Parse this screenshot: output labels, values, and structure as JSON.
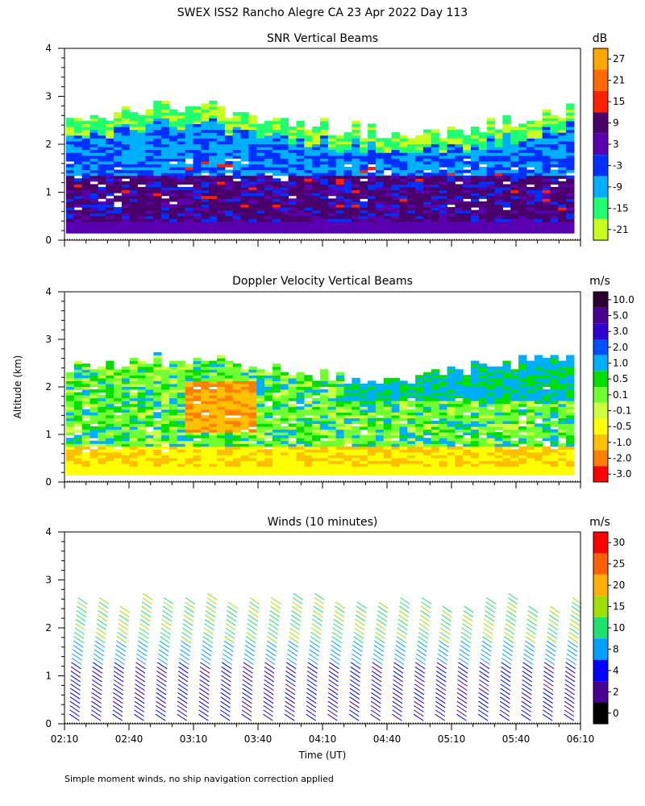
{
  "header": {
    "title": "SWEX ISS2 Rancho Alegre CA  23 Apr 2022 Day 113",
    "footnote": "Simple moment winds, no ship navigation correction applied",
    "y_axis_label": "Altitude (km)",
    "x_axis_label": "Time (UT)"
  },
  "chart_data": [
    {
      "type": "heatmap",
      "title": "SNR Vertical Beams",
      "xlabel": "Time (UT)",
      "ylabel": "Altitude (km)",
      "xlim": [
        "02:10",
        "06:10"
      ],
      "ylim": [
        0,
        4
      ],
      "yticks": [
        0,
        1,
        2,
        3,
        4
      ],
      "colorbar": {
        "unit": "dB",
        "labels": [
          "27",
          "21",
          "15",
          "9",
          "3",
          "-3",
          "-9",
          "-15",
          "-21"
        ],
        "colors": [
          "#ffa500",
          "#ff6a00",
          "#ff2000",
          "#4a006a",
          "#5a00b0",
          "#0030ff",
          "#00b0ff",
          "#20ff70",
          "#c8ff20"
        ]
      },
      "bands": [
        {
          "from_alt": 0.15,
          "to_alt": 0.35,
          "value": "3"
        },
        {
          "from_alt": 0.35,
          "to_alt": 1.4,
          "value": "9"
        },
        {
          "from_alt": 1.4,
          "to_alt": 1.9,
          "value": "-3"
        },
        {
          "from_alt": 1.9,
          "to_alt": 2.2,
          "value": "-9"
        },
        {
          "from_alt": 2.2,
          "to_alt": 2.5,
          "value": "-15"
        }
      ]
    },
    {
      "type": "heatmap",
      "title": "Doppler Velocity Vertical Beams",
      "xlabel": "Time (UT)",
      "ylabel": "Altitude (km)",
      "xlim": [
        "02:10",
        "06:10"
      ],
      "ylim": [
        0,
        4
      ],
      "yticks": [
        0,
        1,
        2,
        3,
        4
      ],
      "colorbar": {
        "unit": "m/s",
        "labels": [
          "10.0",
          "5.0",
          "3.0",
          "2.0",
          "1.0",
          "0.5",
          "0.1",
          "-0.1",
          "-0.5",
          "-1.0",
          "-2.0",
          "-3.0"
        ],
        "colors": [
          "#2a0030",
          "#4a0090",
          "#3000d0",
          "#0050ff",
          "#00b0ff",
          "#00e000",
          "#70ff30",
          "#d0ff40",
          "#ffff00",
          "#ffc000",
          "#ff8000",
          "#ff0000"
        ]
      }
    },
    {
      "type": "scatter",
      "title": "Winds (10 minutes)",
      "xlabel": "Time (UT)",
      "ylabel": "Altitude (km)",
      "xlim": [
        "02:10",
        "06:10"
      ],
      "ylim": [
        0,
        4
      ],
      "yticks": [
        0,
        1,
        2,
        3,
        4
      ],
      "xticks": [
        "02:10",
        "02:40",
        "03:10",
        "03:40",
        "04:10",
        "04:40",
        "05:10",
        "05:40",
        "06:10"
      ],
      "colorbar": {
        "unit": "m/s",
        "labels": [
          "30",
          "25",
          "20",
          "15",
          "10",
          "8",
          "4",
          "2",
          "0"
        ],
        "colors": [
          "#ff0000",
          "#ff6000",
          "#ffb000",
          "#a0e000",
          "#20e070",
          "#00a0ff",
          "#0000ff",
          "#4a0090",
          "#000000"
        ]
      },
      "profile_times": [
        "02:10",
        "02:20",
        "02:30",
        "02:40",
        "02:50",
        "03:00",
        "03:10",
        "03:20",
        "03:30",
        "03:40",
        "03:50",
        "04:00",
        "04:10",
        "04:20",
        "04:30",
        "04:40",
        "04:50",
        "05:00",
        "05:10",
        "05:20",
        "05:30",
        "05:40",
        "05:50",
        "06:00"
      ]
    }
  ]
}
